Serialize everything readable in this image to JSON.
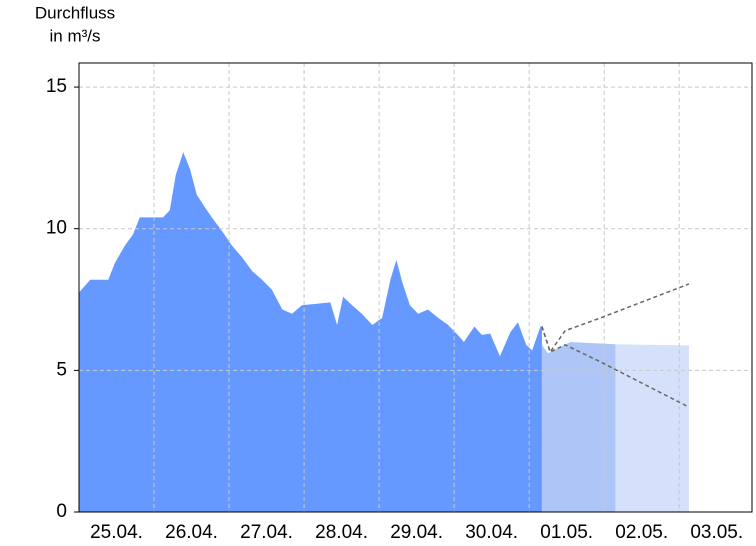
{
  "chart_data": {
    "type": "area",
    "ylabel": [
      "Durchfluss",
      "in m³/s"
    ],
    "xlim": [
      0,
      8.97
    ],
    "ylim": [
      0,
      15.85
    ],
    "yticks": [
      0,
      5,
      10,
      15
    ],
    "xticks": [
      {
        "value": 0.5,
        "label": "25.04."
      },
      {
        "value": 1.5,
        "label": "26.04."
      },
      {
        "value": 2.5,
        "label": "27.04."
      },
      {
        "value": 3.5,
        "label": "28.04."
      },
      {
        "value": 4.5,
        "label": "29.04."
      },
      {
        "value": 5.5,
        "label": "30.04."
      },
      {
        "value": 6.5,
        "label": "01.05."
      },
      {
        "value": 7.5,
        "label": "02.05."
      },
      {
        "value": 8.5,
        "label": "03.05."
      }
    ],
    "xgrid": [
      1,
      2,
      3,
      4,
      5,
      6,
      7,
      8
    ],
    "grid": true,
    "series": [
      {
        "style": "area",
        "color": "#6699ff",
        "x": [
          0,
          0.15,
          0.39,
          0.48,
          0.61,
          0.72,
          0.81,
          1.12,
          1.21,
          1.29,
          1.39,
          1.48,
          1.57,
          1.68,
          1.77,
          1.91,
          2.04,
          2.17,
          2.31,
          2.44,
          2.57,
          2.71,
          2.84,
          2.97,
          3.35,
          3.44,
          3.52,
          3.64,
          3.77,
          3.91,
          4.04,
          4.15,
          4.23,
          4.31,
          4.41,
          4.52,
          4.65,
          4.79,
          4.92,
          5.05,
          5.13,
          5.27,
          5.37,
          5.48,
          5.61,
          5.75,
          5.85,
          5.96,
          6.04,
          6.15,
          6.17
        ],
        "values": [
          7.75,
          8.2,
          8.2,
          8.8,
          9.4,
          9.8,
          10.4,
          10.4,
          10.65,
          11.9,
          12.7,
          12.1,
          11.2,
          10.75,
          10.4,
          9.9,
          9.4,
          9.0,
          8.5,
          8.2,
          7.85,
          7.15,
          7.0,
          7.3,
          7.4,
          6.6,
          7.6,
          7.3,
          7.0,
          6.6,
          6.85,
          8.2,
          8.9,
          8.1,
          7.3,
          7.0,
          7.15,
          6.85,
          6.6,
          6.25,
          6.0,
          6.55,
          6.25,
          6.3,
          5.5,
          6.35,
          6.7,
          5.9,
          5.7,
          6.55,
          6.55
        ]
      },
      {
        "style": "area",
        "color": "#adc5f7",
        "x": [
          6.17,
          6.25,
          6.55,
          7.15
        ],
        "values": [
          5.9,
          5.6,
          6.0,
          5.92
        ]
      },
      {
        "style": "area",
        "color": "#d5e1fa",
        "x": [
          7.15,
          8.13
        ],
        "values": [
          5.92,
          5.88
        ]
      },
      {
        "style": "dashed",
        "color": "#666666",
        "x": [
          6.17,
          6.28,
          6.48,
          6.95,
          8.13
        ],
        "values": [
          6.55,
          5.65,
          6.4,
          6.85,
          8.05
        ]
      },
      {
        "style": "dashed",
        "color": "#666666",
        "x": [
          6.17,
          6.28,
          6.48,
          6.95,
          8.13
        ],
        "values": [
          6.55,
          5.65,
          5.9,
          5.3,
          3.7
        ]
      }
    ]
  }
}
